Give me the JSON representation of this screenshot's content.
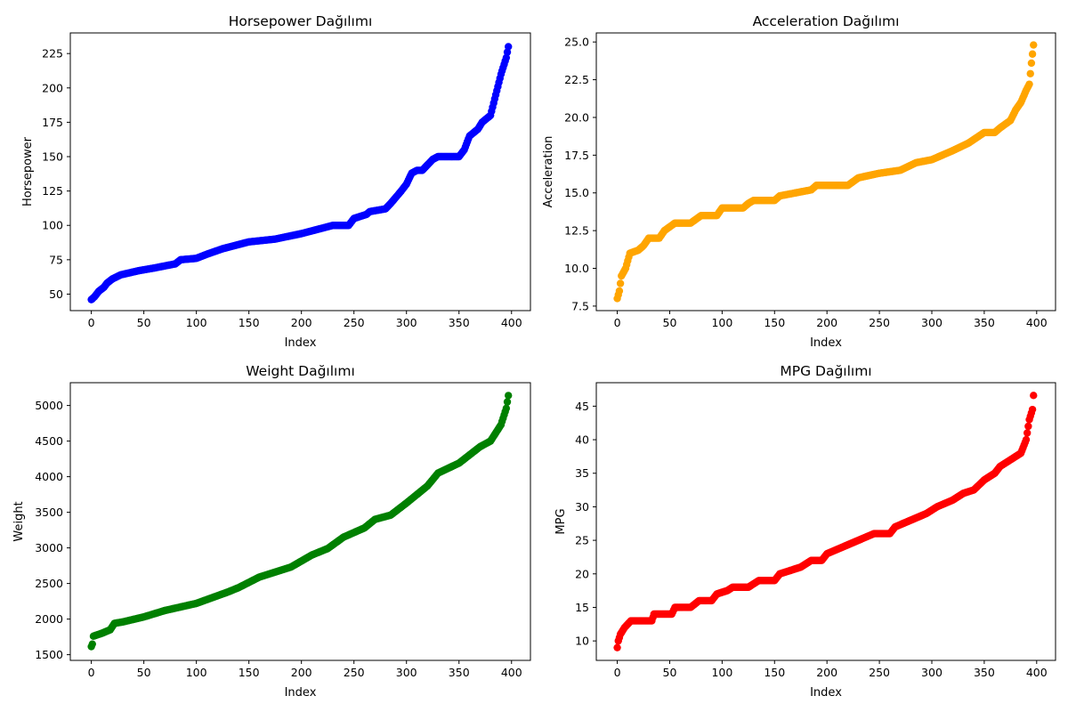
{
  "chart_data": [
    {
      "type": "scatter",
      "title": "Horsepower Dağılımı",
      "xlabel": "Index",
      "ylabel": "Horsepower",
      "color": "#0000ff",
      "xlim": [
        -20,
        418
      ],
      "ylim": [
        38,
        240
      ],
      "xticks": [
        0,
        50,
        100,
        150,
        200,
        250,
        300,
        350,
        400
      ],
      "yticks": [
        50,
        75,
        100,
        125,
        150,
        175,
        200,
        225
      ],
      "ytick_labels": [
        "50",
        "75",
        "100",
        "125",
        "150",
        "175",
        "200",
        "225"
      ],
      "grid": false,
      "n_points": 398,
      "curve": [
        [
          0,
          46
        ],
        [
          3,
          48
        ],
        [
          7,
          52
        ],
        [
          12,
          55
        ],
        [
          15,
          58
        ],
        [
          20,
          61
        ],
        [
          28,
          64
        ],
        [
          45,
          67
        ],
        [
          60,
          69
        ],
        [
          80,
          72
        ],
        [
          85,
          75
        ],
        [
          100,
          76
        ],
        [
          110,
          79
        ],
        [
          125,
          83
        ],
        [
          140,
          86
        ],
        [
          150,
          88
        ],
        [
          175,
          90
        ],
        [
          200,
          94
        ],
        [
          215,
          97
        ],
        [
          230,
          100
        ],
        [
          245,
          100
        ],
        [
          250,
          105
        ],
        [
          262,
          108
        ],
        [
          265,
          110
        ],
        [
          280,
          112
        ],
        [
          285,
          116
        ],
        [
          295,
          125
        ],
        [
          300,
          130
        ],
        [
          305,
          138
        ],
        [
          310,
          140
        ],
        [
          315,
          140
        ],
        [
          325,
          148
        ],
        [
          330,
          150
        ],
        [
          350,
          150
        ],
        [
          355,
          155
        ],
        [
          360,
          165
        ],
        [
          368,
          170
        ],
        [
          372,
          175
        ],
        [
          380,
          180
        ],
        [
          385,
          195
        ],
        [
          390,
          210
        ],
        [
          395,
          222
        ],
        [
          397,
          230
        ]
      ]
    },
    {
      "type": "scatter",
      "title": "Acceleration Dağılımı",
      "xlabel": "Index",
      "ylabel": "Acceleration",
      "color": "#ffa500",
      "xlim": [
        -20,
        418
      ],
      "ylim": [
        7.2,
        25.6
      ],
      "xticks": [
        0,
        50,
        100,
        150,
        200,
        250,
        300,
        350,
        400
      ],
      "yticks": [
        7.5,
        10.0,
        12.5,
        15.0,
        17.5,
        20.0,
        22.5,
        25.0
      ],
      "ytick_labels": [
        "7.5",
        "10.0",
        "12.5",
        "15.0",
        "17.5",
        "20.0",
        "22.5",
        "25.0"
      ],
      "grid": false,
      "n_points": 398,
      "curve": [
        [
          0,
          8.0
        ],
        [
          2,
          8.5
        ],
        [
          4,
          9.5
        ],
        [
          8,
          10.0
        ],
        [
          10,
          10.5
        ],
        [
          12,
          11.0
        ],
        [
          20,
          11.2
        ],
        [
          25,
          11.5
        ],
        [
          30,
          12.0
        ],
        [
          40,
          12.0
        ],
        [
          45,
          12.5
        ],
        [
          55,
          13.0
        ],
        [
          70,
          13.0
        ],
        [
          80,
          13.5
        ],
        [
          95,
          13.5
        ],
        [
          100,
          14.0
        ],
        [
          120,
          14.0
        ],
        [
          125,
          14.3
        ],
        [
          130,
          14.5
        ],
        [
          150,
          14.5
        ],
        [
          155,
          14.8
        ],
        [
          170,
          15.0
        ],
        [
          185,
          15.2
        ],
        [
          190,
          15.5
        ],
        [
          220,
          15.5
        ],
        [
          230,
          16.0
        ],
        [
          250,
          16.3
        ],
        [
          270,
          16.5
        ],
        [
          285,
          17.0
        ],
        [
          300,
          17.2
        ],
        [
          320,
          17.8
        ],
        [
          335,
          18.3
        ],
        [
          350,
          19.0
        ],
        [
          360,
          19.0
        ],
        [
          365,
          19.3
        ],
        [
          375,
          19.8
        ],
        [
          380,
          20.5
        ],
        [
          385,
          21.0
        ],
        [
          390,
          21.8
        ],
        [
          393,
          22.2
        ],
        [
          395,
          23.6
        ],
        [
          397,
          24.8
        ]
      ]
    },
    {
      "type": "scatter",
      "title": "Weight Dağılımı",
      "xlabel": "Index",
      "ylabel": "Weight",
      "color": "#008000",
      "xlim": [
        -20,
        418
      ],
      "ylim": [
        1420,
        5320
      ],
      "xticks": [
        0,
        50,
        100,
        150,
        200,
        250,
        300,
        350,
        400
      ],
      "yticks": [
        1500,
        2000,
        2500,
        3000,
        3500,
        4000,
        4500,
        5000
      ],
      "ytick_labels": [
        "1500",
        "2000",
        "2500",
        "3000",
        "3500",
        "4000",
        "4500",
        "5000"
      ],
      "grid": false,
      "n_points": 398,
      "curve": [
        [
          0,
          1613
        ],
        [
          1,
          1649
        ],
        [
          2,
          1760
        ],
        [
          10,
          1800
        ],
        [
          18,
          1850
        ],
        [
          22,
          1940
        ],
        [
          30,
          1960
        ],
        [
          50,
          2030
        ],
        [
          70,
          2120
        ],
        [
          100,
          2220
        ],
        [
          130,
          2380
        ],
        [
          140,
          2440
        ],
        [
          160,
          2590
        ],
        [
          190,
          2730
        ],
        [
          210,
          2900
        ],
        [
          225,
          2990
        ],
        [
          240,
          3150
        ],
        [
          260,
          3280
        ],
        [
          270,
          3400
        ],
        [
          285,
          3460
        ],
        [
          300,
          3630
        ],
        [
          320,
          3870
        ],
        [
          330,
          4050
        ],
        [
          350,
          4190
        ],
        [
          370,
          4420
        ],
        [
          380,
          4500
        ],
        [
          390,
          4730
        ],
        [
          395,
          4960
        ],
        [
          397,
          5140
        ]
      ]
    },
    {
      "type": "scatter",
      "title": "MPG Dağılımı",
      "xlabel": "Index",
      "ylabel": "MPG",
      "color": "#ff0000",
      "xlim": [
        -20,
        418
      ],
      "ylim": [
        7.1,
        48.5
      ],
      "xticks": [
        0,
        50,
        100,
        150,
        200,
        250,
        300,
        350,
        400
      ],
      "yticks": [
        10,
        15,
        20,
        25,
        30,
        35,
        40,
        45
      ],
      "ytick_labels": [
        "10",
        "15",
        "20",
        "25",
        "30",
        "35",
        "40",
        "45"
      ],
      "grid": false,
      "n_points": 398,
      "curve": [
        [
          0,
          9.0
        ],
        [
          1,
          10.0
        ],
        [
          3,
          11.0
        ],
        [
          7,
          12.0
        ],
        [
          13,
          13.0
        ],
        [
          33,
          13.0
        ],
        [
          35,
          14.0
        ],
        [
          52,
          14.0
        ],
        [
          55,
          15.0
        ],
        [
          70,
          15.0
        ],
        [
          78,
          16.0
        ],
        [
          90,
          16.0
        ],
        [
          95,
          17.0
        ],
        [
          105,
          17.5
        ],
        [
          110,
          18.0
        ],
        [
          125,
          18.0
        ],
        [
          135,
          19.0
        ],
        [
          150,
          19.0
        ],
        [
          155,
          20.0
        ],
        [
          175,
          21.0
        ],
        [
          185,
          22.0
        ],
        [
          195,
          22.0
        ],
        [
          200,
          23.0
        ],
        [
          215,
          24.0
        ],
        [
          230,
          25.0
        ],
        [
          245,
          26.0
        ],
        [
          260,
          26.0
        ],
        [
          265,
          27.0
        ],
        [
          280,
          28.0
        ],
        [
          295,
          29.0
        ],
        [
          305,
          30.0
        ],
        [
          320,
          31.0
        ],
        [
          330,
          32.0
        ],
        [
          340,
          32.5
        ],
        [
          350,
          34.0
        ],
        [
          360,
          35.0
        ],
        [
          365,
          36.0
        ],
        [
          375,
          37.0
        ],
        [
          385,
          38.0
        ],
        [
          390,
          40.0
        ],
        [
          393,
          43.0
        ],
        [
          396,
          44.5
        ],
        [
          397,
          46.6
        ]
      ]
    }
  ]
}
